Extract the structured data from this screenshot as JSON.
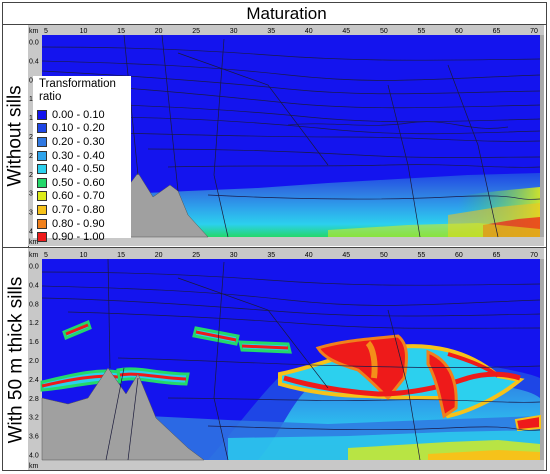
{
  "title": "Maturation",
  "panels": [
    {
      "label": "Without sills"
    },
    {
      "label": "With 50 m thick sills"
    }
  ],
  "axes": {
    "x_unit": "km",
    "y_unit": "km",
    "x_ticks": [
      "5",
      "10",
      "15",
      "20",
      "25",
      "30",
      "35",
      "40",
      "45",
      "50",
      "55",
      "60",
      "65",
      "70"
    ],
    "y_ticks": [
      "0.0",
      "0.4",
      "0.8",
      "1.2",
      "1.6",
      "2.0",
      "2.4",
      "2.8",
      "3.2",
      "3.6",
      "4.0"
    ]
  },
  "legend": {
    "title": "Transformation ratio",
    "items": [
      {
        "label": "0.00 - 0.10",
        "color": "#1414ee"
      },
      {
        "label": "0.10 - 0.20",
        "color": "#1e46e6"
      },
      {
        "label": "0.20 - 0.30",
        "color": "#2f78e2"
      },
      {
        "label": "0.30 - 0.40",
        "color": "#2ea4ec"
      },
      {
        "label": "0.40 - 0.50",
        "color": "#2cd0ee"
      },
      {
        "label": "0.50 - 0.60",
        "color": "#24d86a"
      },
      {
        "label": "0.60 - 0.70",
        "color": "#dcec1a"
      },
      {
        "label": "0.70 - 0.80",
        "color": "#f6c21a"
      },
      {
        "label": "0.80 - 0.90",
        "color": "#f0801c"
      },
      {
        "label": "0.90 - 1.00",
        "color": "#ee1a1a"
      }
    ]
  }
}
